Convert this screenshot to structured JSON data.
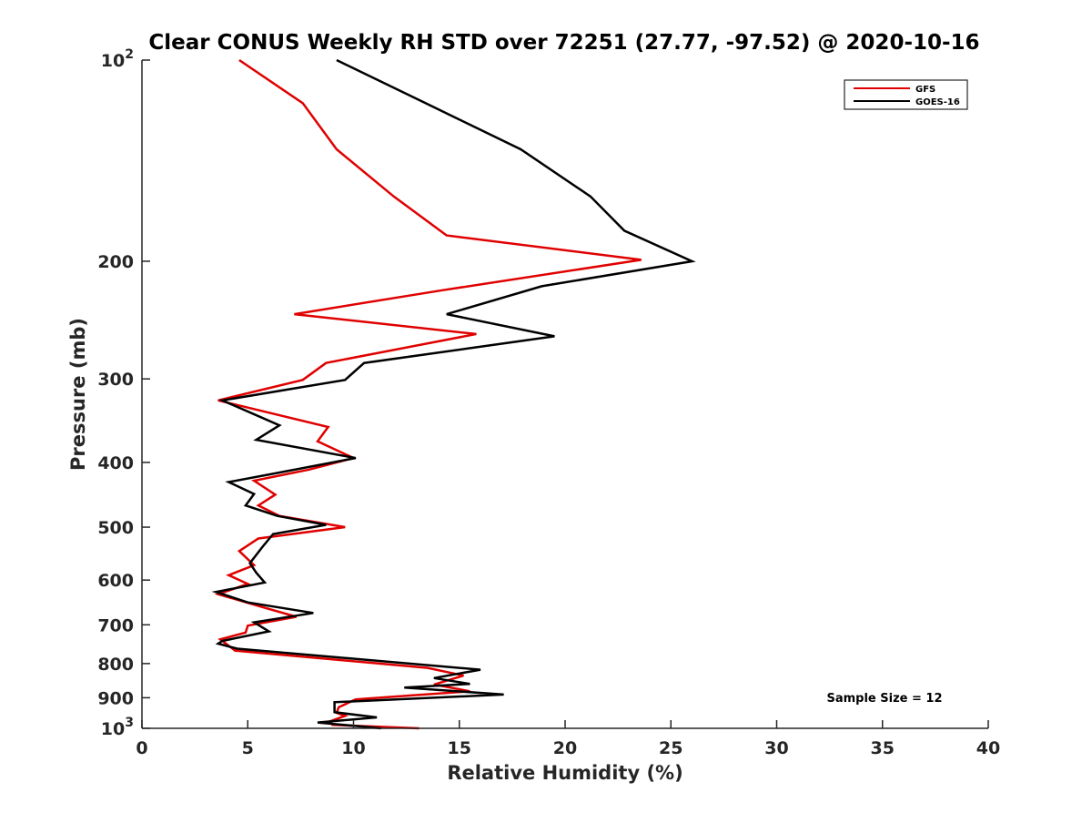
{
  "chart_data": {
    "type": "line",
    "title": "Clear CONUS Weekly RH STD over 72251 (27.77, -97.52) @ 2020-10-16",
    "xlabel": "Relative Humidity (%)",
    "ylabel": "Pressure (mb)",
    "xlim": [
      0,
      40
    ],
    "ylim": [
      100,
      1000
    ],
    "y_scale": "log",
    "y_reversed": true,
    "grid": false,
    "legend_position": "top-right",
    "x_ticks": [
      0,
      5,
      10,
      15,
      20,
      25,
      30,
      35,
      40
    ],
    "x_tick_labels": [
      "0",
      "5",
      "10",
      "15",
      "20",
      "25",
      "30",
      "35",
      "40"
    ],
    "y_ticks": [
      100,
      200,
      300,
      400,
      500,
      600,
      700,
      800,
      900,
      1000
    ],
    "y_tick_labels": [
      {
        "base": "10",
        "exp": "2"
      },
      {
        "base": "200",
        "exp": ""
      },
      {
        "base": "300",
        "exp": ""
      },
      {
        "base": "400",
        "exp": ""
      },
      {
        "base": "500",
        "exp": ""
      },
      {
        "base": "600",
        "exp": ""
      },
      {
        "base": "700",
        "exp": ""
      },
      {
        "base": "800",
        "exp": ""
      },
      {
        "base": "900",
        "exp": ""
      },
      {
        "base": "10",
        "exp": "3"
      }
    ],
    "annotation": "Sample Size = 12",
    "series": [
      {
        "name": "GFS",
        "color": "#e00000",
        "x": [
          4.6,
          7.6,
          9.2,
          11.9,
          14.4,
          23.6,
          14.2,
          7.2,
          15.8,
          8.7,
          7.6,
          3.6,
          8.8,
          8.3,
          10.0,
          7.9,
          5.3,
          6.3,
          5.5,
          6.5,
          9.6,
          5.5,
          4.6,
          5.3,
          4.1,
          5.0,
          3.6,
          5.5,
          7.3,
          5.0,
          4.9,
          3.7,
          4.4,
          13.5,
          15.2,
          13.8,
          15.5,
          10.1,
          9.3,
          9.2,
          9.6,
          8.9,
          9.0,
          13.1
        ],
        "y": [
          100,
          116,
          136,
          160,
          183,
          199,
          221,
          240,
          257,
          284,
          301,
          323,
          354,
          372,
          394,
          410,
          426,
          447,
          464,
          481,
          500,
          520,
          543,
          570,
          590,
          608,
          630,
          656,
          681,
          702,
          719,
          736,
          765,
          812,
          834,
          860,
          880,
          905,
          930,
          948,
          958,
          976,
          988,
          1000
        ]
      },
      {
        "name": "GOES-16",
        "color": "#000000",
        "x": [
          9.2,
          13.4,
          17.9,
          21.2,
          22.8,
          26.0,
          18.9,
          14.4,
          19.5,
          10.5,
          9.6,
          3.8,
          6.5,
          5.4,
          10.1,
          6.2,
          4.1,
          5.3,
          4.9,
          6.4,
          8.7,
          6.2,
          5.7,
          5.1,
          5.4,
          5.8,
          3.5,
          5.0,
          8.1,
          5.3,
          6.0,
          3.8,
          3.6,
          4.5,
          16.0,
          13.8,
          15.5,
          12.4,
          17.1,
          9.1,
          9.1,
          11.1,
          8.3,
          11.3
        ],
        "y": [
          100,
          116,
          136,
          160,
          180,
          200,
          218,
          240,
          259,
          284,
          301,
          323,
          352,
          370,
          394,
          416,
          428,
          446,
          464,
          481,
          496,
          512,
          535,
          566,
          585,
          605,
          625,
          648,
          672,
          694,
          716,
          740,
          747,
          760,
          817,
          841,
          858,
          869,
          890,
          914,
          946,
          963,
          980,
          1000
        ]
      }
    ]
  }
}
